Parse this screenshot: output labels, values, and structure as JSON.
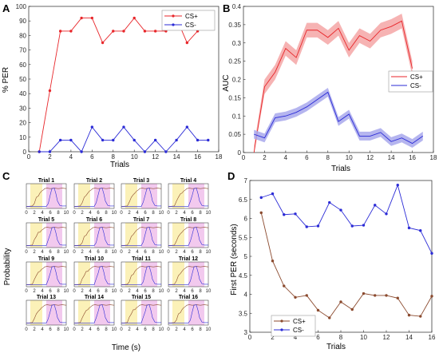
{
  "panels": {
    "A": {
      "letter": "A",
      "xlabel": "Trials",
      "ylabel": "% PER",
      "legend": [
        "CS+",
        "CS-"
      ],
      "xticks": [
        0,
        2,
        4,
        6,
        8,
        10,
        12,
        14,
        16,
        18
      ],
      "yticks": [
        0,
        10,
        20,
        30,
        40,
        50,
        60,
        70,
        80,
        90,
        100
      ]
    },
    "B": {
      "letter": "B",
      "xlabel": "Trials",
      "ylabel": "AUC",
      "legend": [
        "CS+",
        "CS-"
      ],
      "xticks": [
        0,
        2,
        4,
        6,
        8,
        10,
        12,
        14,
        16,
        18
      ],
      "yticks": [
        "0",
        "0.05",
        "0.1",
        "0.15",
        "0.2",
        "0.25",
        "0.3",
        "0.35",
        "0.4"
      ]
    },
    "C": {
      "letter": "C",
      "xlabel": "Time (s)",
      "ylabel": "Probability",
      "trials": [
        "Trial 1",
        "Trial 2",
        "Trial 3",
        "Trial 4",
        "Trial 5",
        "Trial 6",
        "Trial 7",
        "Trial 8",
        "Trial 9",
        "Trial 10",
        "Trial 11",
        "Trial 12",
        "Trial 13",
        "Trial 14",
        "Trial 15",
        "Trial 16"
      ],
      "xticks": [
        "0",
        "2",
        "4",
        "6",
        "8",
        "10"
      ]
    },
    "D": {
      "letter": "D",
      "xlabel": "Trials",
      "ylabel": "First PER (seconds)",
      "legend": [
        "CS+",
        "CS-"
      ],
      "xticks": [
        0,
        2,
        4,
        6,
        8,
        10,
        12,
        14,
        16
      ],
      "yticks": [
        "3",
        "3.5",
        "4",
        "4.5",
        "5",
        "5.5",
        "6",
        "6.5",
        "7"
      ]
    }
  },
  "colors": {
    "cs_plus": "#e8262a",
    "cs_minus": "#2b2bd6",
    "cs_plus_band": "#f4a6a6",
    "cs_minus_band": "#a8a8ec",
    "d_cs_plus": "#8b4a2e",
    "d_cs_minus": "#2b2bd6",
    "yellow_window": "#fbf1b8",
    "pink_window": "#f2c9ee"
  },
  "chart_data": [
    {
      "panel": "A",
      "type": "line",
      "xlabel": "Trials",
      "ylabel": "% PER",
      "xlim": [
        0,
        18
      ],
      "ylim": [
        0,
        100
      ],
      "series": [
        {
          "name": "CS+",
          "x": [
            1,
            2,
            3,
            4,
            5,
            6,
            7,
            8,
            9,
            10,
            11,
            12,
            13,
            14,
            15,
            16
          ],
          "values": [
            0,
            42,
            83,
            83,
            92,
            92,
            75,
            83,
            83,
            92,
            83,
            83,
            83,
            92,
            75,
            83
          ]
        },
        {
          "name": "CS-",
          "x": [
            1,
            2,
            3,
            4,
            5,
            6,
            7,
            8,
            9,
            10,
            11,
            12,
            13,
            14,
            15,
            16,
            17
          ],
          "values": [
            0,
            0,
            8,
            8,
            0,
            17,
            8,
            8,
            17,
            8,
            0,
            8,
            0,
            8,
            17,
            8,
            8
          ]
        }
      ]
    },
    {
      "panel": "B",
      "type": "line",
      "xlabel": "Trials",
      "ylabel": "AUC",
      "xlim": [
        0,
        18
      ],
      "ylim": [
        0,
        0.4
      ],
      "series": [
        {
          "name": "CS+",
          "x": [
            1,
            2,
            3,
            4,
            5,
            6,
            7,
            8,
            9,
            10,
            11,
            12,
            13,
            14,
            15,
            16
          ],
          "values": [
            0,
            0.18,
            0.22,
            0.285,
            0.26,
            0.335,
            0.335,
            0.315,
            0.34,
            0.28,
            0.32,
            0.305,
            0.335,
            0.345,
            0.36,
            0.23
          ],
          "band": 0.02
        },
        {
          "name": "CS-",
          "x": [
            1,
            2,
            3,
            4,
            5,
            6,
            7,
            8,
            9,
            10,
            11,
            12,
            13,
            14,
            15,
            16,
            17
          ],
          "values": [
            0.05,
            0.04,
            0.095,
            0.1,
            0.11,
            0.125,
            0.145,
            0.165,
            0.085,
            0.105,
            0.045,
            0.045,
            0.055,
            0.03,
            0.04,
            0.025,
            0.045
          ],
          "band": 0.012
        }
      ]
    },
    {
      "panel": "D",
      "type": "line",
      "xlabel": "Trials",
      "ylabel": "First PER (seconds)",
      "xlim": [
        0,
        16
      ],
      "ylim": [
        3,
        7
      ],
      "series": [
        {
          "name": "CS+",
          "x": [
            1,
            2,
            3,
            4,
            5,
            6,
            7,
            8,
            9,
            10,
            11,
            12,
            13,
            14,
            15,
            16
          ],
          "values": [
            6.15,
            4.88,
            4.22,
            3.92,
            3.97,
            3.58,
            3.38,
            3.8,
            3.6,
            4.02,
            3.97,
            3.97,
            3.9,
            3.45,
            3.42,
            3.95
          ]
        },
        {
          "name": "CS-",
          "x": [
            1,
            2,
            3,
            4,
            5,
            6,
            7,
            8,
            9,
            10,
            11,
            12,
            13,
            14,
            15,
            16
          ],
          "values": [
            6.55,
            6.65,
            6.1,
            6.12,
            5.78,
            5.8,
            6.42,
            6.22,
            5.8,
            5.82,
            6.35,
            6.12,
            6.88,
            5.75,
            5.68,
            5.08
          ]
        }
      ]
    }
  ]
}
